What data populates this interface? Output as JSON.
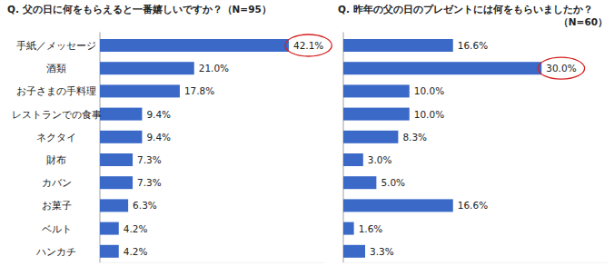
{
  "chart_data": [
    {
      "type": "bar",
      "orientation": "horizontal",
      "title": "Q. 父の日に何をもらえると一番嬉しいですか？（N=95）",
      "categories": [
        "手紙／メッセージ",
        "酒類",
        "お子さまの手料理",
        "レストランでの食事",
        "ネクタイ",
        "財布",
        "カバン",
        "お菓子",
        "ベルト",
        "ハンカチ"
      ],
      "values": [
        42.1,
        21.0,
        17.8,
        9.4,
        9.4,
        7.3,
        7.3,
        6.3,
        4.2,
        4.2
      ],
      "value_labels": [
        "42.1%",
        "21.0%",
        "17.8%",
        "9.4%",
        "9.4%",
        "7.3%",
        "7.3%",
        "6.3%",
        "4.2%",
        "4.2%"
      ],
      "color": "#3a69c8",
      "xlim": [
        0,
        50
      ],
      "data_labels": true,
      "tick_labels": "y",
      "grid": false
    },
    {
      "type": "bar",
      "orientation": "horizontal",
      "title": "Q. 昨年の父の日のプレゼントには何をもらいましたか？（N=60）",
      "categories": [
        null,
        null,
        null,
        null,
        null,
        null,
        null,
        null,
        null,
        null
      ],
      "values": [
        16.6,
        30.0,
        10.0,
        10.0,
        8.3,
        3.0,
        5.0,
        16.6,
        1.6,
        3.3
      ],
      "value_labels": [
        "16.6%",
        "30.0%",
        "10.0%",
        "10.0%",
        "8.3%",
        "3.0%",
        "5.0%",
        "16.6%",
        "1.6%",
        "3.3%"
      ],
      "color": "#3a69c8",
      "xlim": [
        0,
        40
      ],
      "data_labels": true,
      "tick_labels": false,
      "grid": false
    }
  ]
}
